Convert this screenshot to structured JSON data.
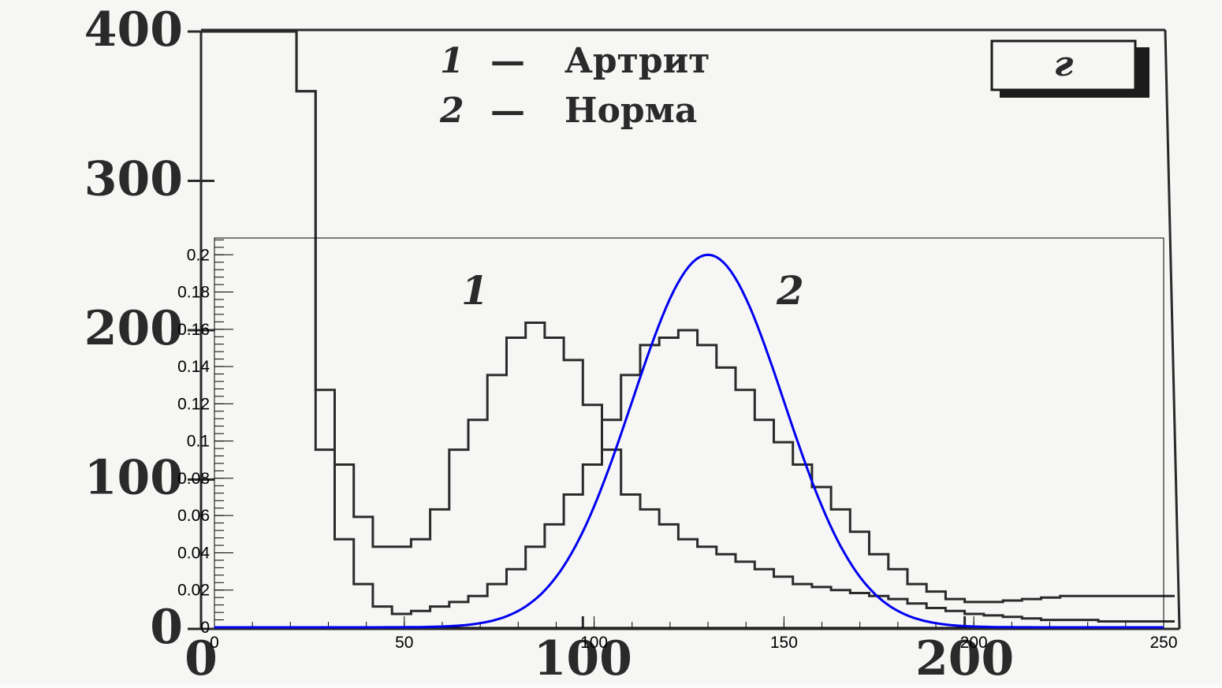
{
  "chart_data": [
    {
      "type": "line",
      "source": "scanned-figure",
      "panel_label": "г",
      "legend": [
        {
          "number": "1",
          "dash": "—",
          "name": "Артрит"
        },
        {
          "number": "2",
          "dash": "—",
          "name": "Норма"
        }
      ],
      "curve_labels": [
        "1",
        "2"
      ],
      "x_ticks": [
        "0",
        "100",
        "200"
      ],
      "y_ticks": [
        "0",
        "100",
        "200",
        "300",
        "400"
      ],
      "xlim": [
        0,
        255
      ],
      "ylim": [
        0,
        400
      ],
      "series": [
        {
          "name": "Артрит",
          "x": [
            0,
            5,
            10,
            15,
            20,
            25,
            30,
            35,
            40,
            45,
            50,
            55,
            60,
            65,
            70,
            75,
            80,
            85,
            90,
            95,
            100,
            105,
            110,
            115,
            120,
            125,
            130,
            135,
            140,
            145,
            150,
            155,
            160,
            165,
            170,
            175,
            180,
            185,
            190,
            195,
            200,
            205,
            210,
            215,
            220,
            225,
            230,
            235,
            240,
            245,
            250,
            255
          ],
          "y": [
            400,
            400,
            400,
            400,
            400,
            360,
            160,
            110,
            75,
            55,
            55,
            60,
            80,
            120,
            140,
            170,
            195,
            205,
            195,
            180,
            150,
            120,
            90,
            80,
            70,
            60,
            55,
            50,
            45,
            40,
            35,
            30,
            28,
            26,
            24,
            22,
            20,
            17,
            14,
            12,
            10,
            9,
            8,
            7,
            6,
            6,
            6,
            5,
            5,
            5,
            5,
            5
          ]
        },
        {
          "name": "Норма",
          "x": [
            0,
            5,
            10,
            15,
            20,
            25,
            30,
            35,
            40,
            45,
            50,
            55,
            60,
            65,
            70,
            75,
            80,
            85,
            90,
            95,
            100,
            105,
            110,
            115,
            120,
            125,
            130,
            135,
            140,
            145,
            150,
            155,
            160,
            165,
            170,
            175,
            180,
            185,
            190,
            195,
            200,
            205,
            210,
            215,
            220,
            225,
            230,
            235,
            240,
            245,
            250,
            255
          ],
          "y": [
            400,
            400,
            400,
            400,
            400,
            360,
            120,
            60,
            30,
            15,
            10,
            12,
            15,
            18,
            22,
            30,
            40,
            55,
            70,
            90,
            110,
            140,
            170,
            190,
            195,
            200,
            190,
            175,
            160,
            140,
            125,
            110,
            95,
            80,
            65,
            50,
            40,
            30,
            25,
            20,
            18,
            18,
            19,
            20,
            21,
            22,
            22,
            22,
            22,
            22,
            22,
            22
          ]
        }
      ]
    },
    {
      "type": "line",
      "source": "overlay-fit",
      "x_ticks": [
        "0",
        "50",
        "100",
        "150",
        "200",
        "250"
      ],
      "y_ticks": [
        "0",
        "0.02",
        "0.04",
        "0.06",
        "0.08",
        "0.1",
        "0.12",
        "0.14",
        "0.16",
        "0.18",
        "0.2"
      ],
      "xlim": [
        0,
        250
      ],
      "ylim": [
        0,
        0.209
      ],
      "grid": false,
      "series": [
        {
          "name": "",
          "kind": "gaussian",
          "mean": 130,
          "sigma": 20,
          "peak": 0.2,
          "color": "#0000ee"
        }
      ]
    }
  ]
}
